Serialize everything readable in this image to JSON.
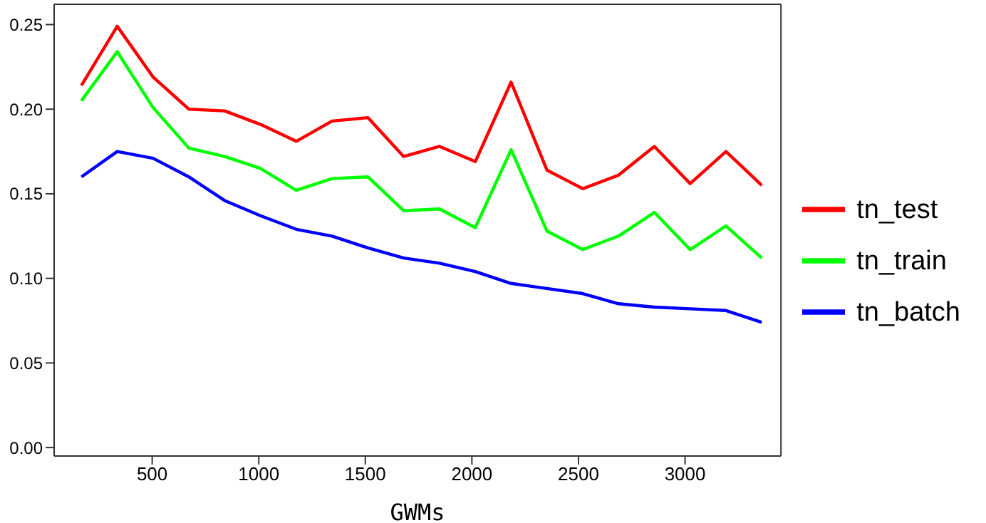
{
  "chart_data": {
    "type": "line",
    "xlabel": "GWMs",
    "x": [
      168,
      336,
      504,
      672,
      840,
      1008,
      1176,
      1344,
      1512,
      1680,
      1848,
      2016,
      2184,
      2352,
      2520,
      2688,
      2856,
      3024,
      3192,
      3360
    ],
    "series": [
      {
        "name": "tn_test",
        "color": "#ff0000",
        "values": [
          0.214,
          0.249,
          0.219,
          0.2,
          0.199,
          0.191,
          0.181,
          0.193,
          0.195,
          0.172,
          0.178,
          0.169,
          0.216,
          0.164,
          0.153,
          0.161,
          0.178,
          0.156,
          0.175,
          0.155
        ]
      },
      {
        "name": "tn_train",
        "color": "#00ff00",
        "values": [
          0.205,
          0.234,
          0.201,
          0.177,
          0.172,
          0.165,
          0.152,
          0.159,
          0.16,
          0.14,
          0.141,
          0.13,
          0.176,
          0.128,
          0.117,
          0.125,
          0.139,
          0.117,
          0.131,
          0.112
        ]
      },
      {
        "name": "tn_batch",
        "color": "#0000ff",
        "values": [
          0.16,
          0.175,
          0.171,
          0.16,
          0.146,
          0.137,
          0.129,
          0.125,
          0.118,
          0.112,
          0.109,
          0.104,
          0.097,
          0.094,
          0.091,
          0.085,
          0.083,
          0.082,
          0.081,
          0.074
        ]
      }
    ],
    "xlim": [
      40,
      3450
    ],
    "ylim": [
      -0.005,
      0.262
    ],
    "xticks": [
      500,
      1000,
      1500,
      2000,
      2500,
      3000
    ],
    "yticks": [
      {
        "value": 0,
        "label": "0.00"
      },
      {
        "value": 0.05,
        "label": "0.05"
      },
      {
        "value": 0.1,
        "label": "0.10"
      },
      {
        "value": 0.15,
        "label": "0.15"
      },
      {
        "value": 0.2,
        "label": "0.20"
      },
      {
        "value": 0.25,
        "label": "0.25"
      }
    ],
    "grid": false,
    "legend": "right",
    "marker": "none",
    "line_style": "solid"
  }
}
